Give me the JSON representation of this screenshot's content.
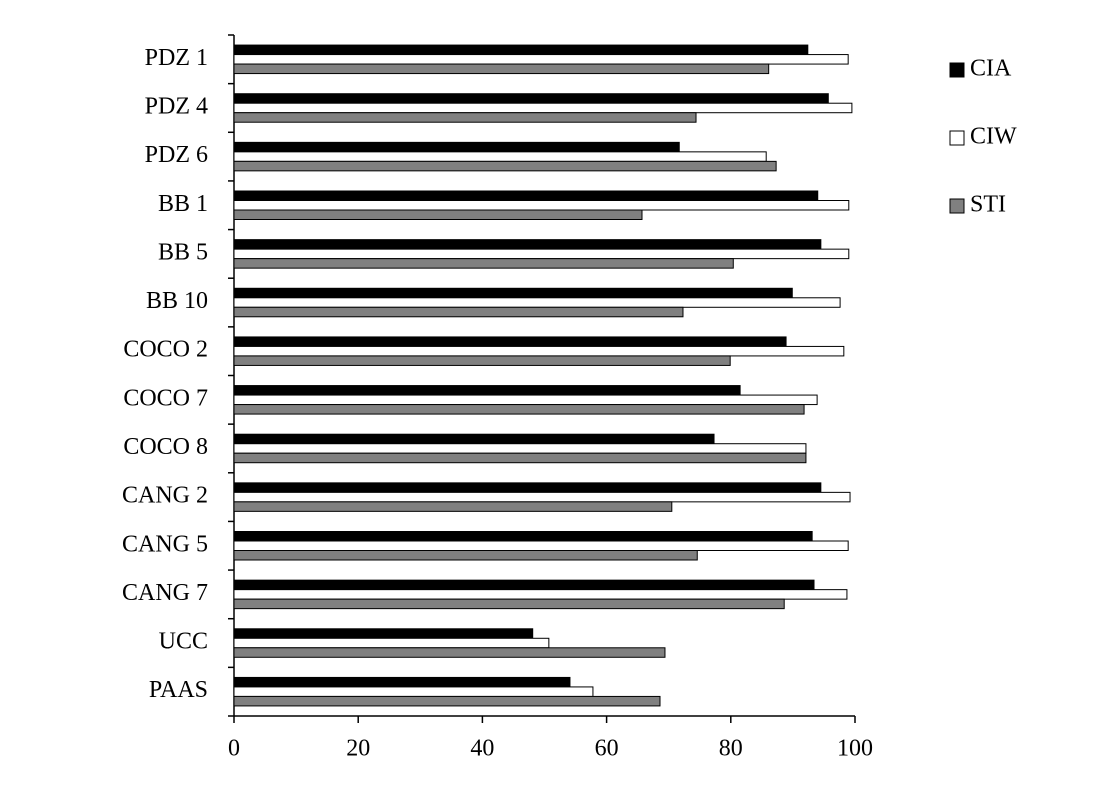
{
  "chart_data": {
    "type": "hbar",
    "categories": [
      "PDZ 1",
      "PDZ 4",
      "PDZ 6",
      "BB 1",
      "BB 5",
      "BB 10",
      "COCO 2",
      "COCO 7",
      "COCO 8",
      "CANG 2",
      "CANG 5",
      "CANG 7",
      "UCC",
      "PAAS"
    ],
    "series": [
      {
        "name": "CIA",
        "color": "#000000",
        "values": [
          92.4,
          95.7,
          71.7,
          94.0,
          94.5,
          89.9,
          88.9,
          81.5,
          77.3,
          94.5,
          93.1,
          93.4,
          48.1,
          54.1
        ]
      },
      {
        "name": "CIW",
        "color": "#ffffff",
        "values": [
          98.9,
          99.5,
          85.7,
          99.0,
          99.0,
          97.6,
          98.2,
          93.9,
          92.1,
          99.2,
          98.9,
          98.7,
          50.7,
          57.8
        ]
      },
      {
        "name": "STI",
        "color": "#808080",
        "values": [
          86.1,
          74.4,
          87.3,
          65.7,
          80.4,
          72.3,
          79.9,
          91.8,
          92.1,
          70.5,
          74.6,
          88.6,
          69.4,
          68.6
        ]
      }
    ],
    "xlim": [
      0,
      100
    ],
    "xticks": [
      0,
      20,
      40,
      60,
      80,
      100
    ],
    "grid": false,
    "legend": "right"
  }
}
